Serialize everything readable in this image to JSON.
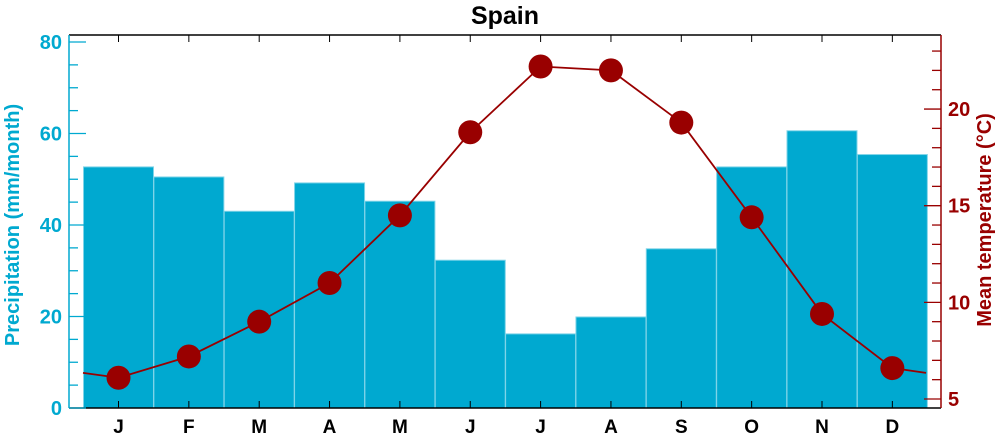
{
  "chart_data": {
    "type": "bar",
    "title": "Spain",
    "categories": [
      "J",
      "F",
      "M",
      "A",
      "M",
      "J",
      "J",
      "A",
      "S",
      "O",
      "N",
      "D"
    ],
    "series": [
      {
        "name": "Precipitation",
        "kind": "bar",
        "axis": "left",
        "color": "#00a9d0",
        "values": [
          52.7,
          50.5,
          43.0,
          49.2,
          45.2,
          32.3,
          16.2,
          19.9,
          34.8,
          52.7,
          60.6,
          55.4
        ]
      },
      {
        "name": "Mean temperature",
        "kind": "line",
        "axis": "right",
        "color": "#990000",
        "values": [
          6.1,
          7.2,
          9.0,
          11.0,
          14.5,
          18.8,
          22.2,
          22.0,
          19.3,
          14.4,
          9.4,
          6.6
        ]
      }
    ],
    "ylabel": "Precipitation (mm/month)",
    "y2label": "Mean temperature (°C)",
    "ylim": [
      0,
      80
    ],
    "y2lim": [
      5,
      23
    ],
    "yticks": [
      "0",
      "20",
      "40",
      "60",
      "80"
    ],
    "y2ticks": [
      "5",
      "10",
      "15",
      "20"
    ],
    "grid": false,
    "left_axis_color": "#00a9d0",
    "right_axis_color": "#990000"
  }
}
